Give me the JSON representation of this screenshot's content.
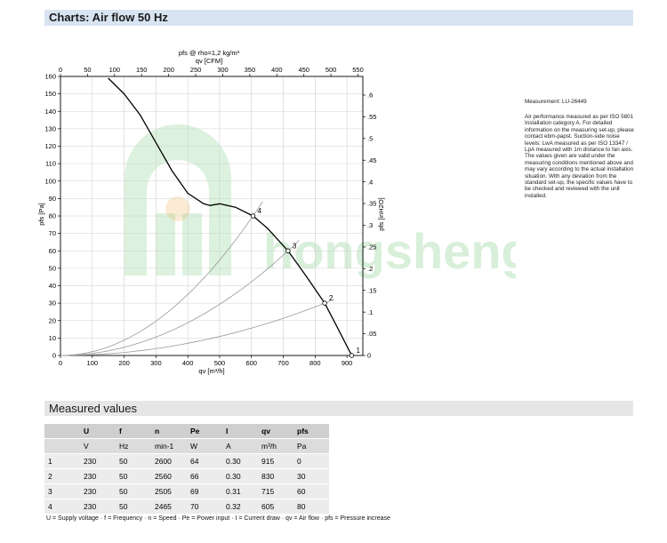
{
  "header": {
    "title": "Charts: Air flow 50 Hz"
  },
  "chart_data": {
    "type": "line",
    "title": "pfs @ rho=1,2 kg/m³",
    "xlabel": "qv [m³/h]",
    "x2label": "qv [CFM]",
    "ylabel": "pfs [Pa]",
    "y2label": "pfs [inH2O]",
    "xlim": [
      0,
      950
    ],
    "ylim": [
      0,
      160
    ],
    "x2lim": [
      0,
      559
    ],
    "y2lim": [
      0,
      0.643
    ],
    "x_ticks": [
      0,
      100,
      200,
      300,
      400,
      500,
      600,
      700,
      800,
      900
    ],
    "y_ticks": [
      0,
      10,
      20,
      30,
      40,
      50,
      60,
      70,
      80,
      90,
      100,
      110,
      120,
      130,
      140,
      150,
      160
    ],
    "x2_ticks": [
      0,
      50,
      100,
      150,
      200,
      250,
      300,
      350,
      400,
      450,
      500,
      550
    ],
    "y2_ticks": [
      0,
      0.05,
      0.1,
      0.15,
      0.2,
      0.25,
      0.3,
      0.35,
      0.4,
      0.45,
      0.5,
      0.55,
      0.6
    ],
    "grid": true,
    "series": [
      {
        "name": "fan-curve",
        "color": "#000000",
        "x": [
          150,
          200,
          250,
          300,
          350,
          400,
          450,
          470,
          500,
          550,
          605,
          650,
          715,
          770,
          830,
          870,
          915
        ],
        "y": [
          159,
          150,
          138,
          122,
          106,
          93,
          87,
          86,
          87,
          85,
          80,
          73,
          60,
          46,
          30,
          16,
          0
        ]
      },
      {
        "name": "system-curve-2",
        "color": "#999999",
        "x": [
          0,
          830,
          860
        ],
        "y": [
          0,
          30,
          32.2
        ]
      },
      {
        "name": "system-curve-3",
        "color": "#999999",
        "x": [
          0,
          715,
          750
        ],
        "y": [
          0,
          60,
          66
        ]
      },
      {
        "name": "system-curve-4",
        "color": "#999999",
        "x": [
          0,
          605,
          635
        ],
        "y": [
          0,
          80,
          88.2
        ]
      }
    ],
    "points": [
      {
        "label": "1",
        "x": 915,
        "y": 0
      },
      {
        "label": "2",
        "x": 830,
        "y": 30
      },
      {
        "label": "3",
        "x": 715,
        "y": 60
      },
      {
        "label": "4",
        "x": 605,
        "y": 80
      }
    ]
  },
  "watermark": {
    "text": "hongsheng",
    "color": "#3fb54a"
  },
  "notes": {
    "measurement": "Measurement: LU-26449",
    "text": "Air performance measured as per ISO 5801 Installation category A. For detailed information on the measuring set-up, please contact ebm-papst. Suction-side noise levels: LwA measured as per ISO 13347 / LpA measured with 1m distance to fan axis. The values given are valid under the measuring conditions mentioned above and may vary according to the actual installation situation. With any deviation from the standard set-up, the specific values have to be checked and reviewed with the unit installed."
  },
  "measured": {
    "title": "Measured values",
    "columns": [
      "",
      "U",
      "f",
      "n",
      "Pe",
      "I",
      "qv",
      "pfs"
    ],
    "units": [
      "",
      "V",
      "Hz",
      "min-1",
      "W",
      "A",
      "m³/h",
      "Pa"
    ],
    "rows": [
      [
        "1",
        "230",
        "50",
        "2600",
        "64",
        "0.30",
        "915",
        "0"
      ],
      [
        "2",
        "230",
        "50",
        "2560",
        "66",
        "0.30",
        "830",
        "30"
      ],
      [
        "3",
        "230",
        "50",
        "2505",
        "69",
        "0.31",
        "715",
        "60"
      ],
      [
        "4",
        "230",
        "50",
        "2465",
        "70",
        "0.32",
        "605",
        "80"
      ]
    ],
    "legend": "U = Supply voltage · f = Frequency · n = Speed · Pe = Power input · I = Current draw · qv = Air flow · pfs = Pressure increase"
  }
}
